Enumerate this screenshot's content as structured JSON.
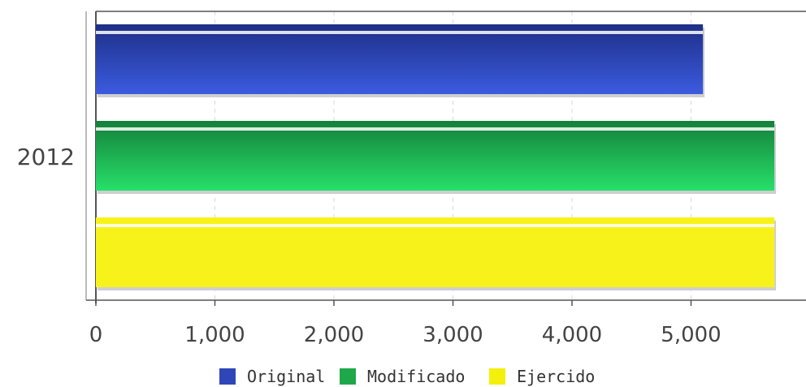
{
  "chart_data": {
    "type": "bar",
    "orientation": "horizontal",
    "categories": [
      "2012"
    ],
    "series": [
      {
        "name": "Original",
        "color": "#2f46b8",
        "values": [
          5100
        ]
      },
      {
        "name": "Modificado",
        "color": "#1fa84a",
        "values": [
          5700
        ]
      },
      {
        "name": "Ejercido",
        "color": "#f3f00a",
        "values": [
          5700
        ]
      }
    ],
    "x_ticks": [
      "0",
      "1,000",
      "2,000",
      "3,000",
      "4,000",
      "5,000"
    ],
    "x_tick_values": [
      0,
      1000,
      2000,
      3000,
      4000,
      5000
    ],
    "xlim": [
      0,
      5900
    ],
    "grid": true,
    "legend_position": "bottom"
  }
}
